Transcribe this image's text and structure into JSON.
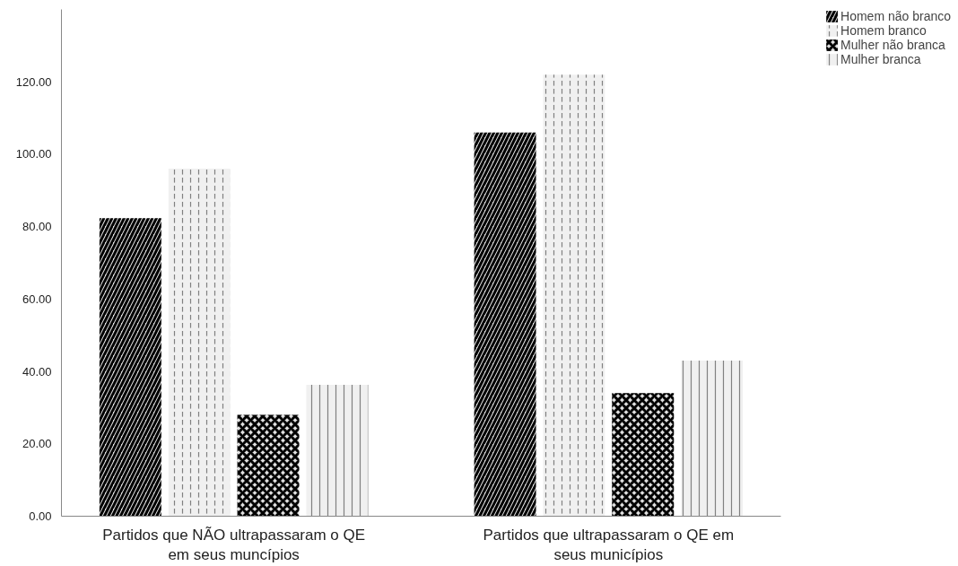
{
  "chart_data": {
    "type": "bar",
    "categories": [
      "Partidos que NÃO ultrapassaram o QE\nem seus muncípios",
      "Partidos que ultrapassaram o QE em\nseus municípios"
    ],
    "series": [
      {
        "name": "Homem não branco",
        "color": "#000000",
        "values": [
          82.3,
          106
        ]
      },
      {
        "name": "Homem branco",
        "color": "#808080",
        "values": [
          96,
          122
        ]
      },
      {
        "name": "Mulher não branca",
        "color": "#000000",
        "values": [
          28,
          34
        ]
      },
      {
        "name": "Mulher branca",
        "color": "#808080",
        "values": [
          36.3,
          43
        ]
      }
    ],
    "ylim": [
      0,
      140
    ],
    "yticks": [
      {
        "value": 0,
        "label": "0.00"
      },
      {
        "value": 20,
        "label": "20.00"
      },
      {
        "value": 40,
        "label": "40.00"
      },
      {
        "value": 60,
        "label": "60.00"
      },
      {
        "value": 80,
        "label": "80.00"
      },
      {
        "value": 100,
        "label": "100.00"
      },
      {
        "value": 120,
        "label": "120.00"
      }
    ],
    "grid": false,
    "legend": "top right"
  }
}
